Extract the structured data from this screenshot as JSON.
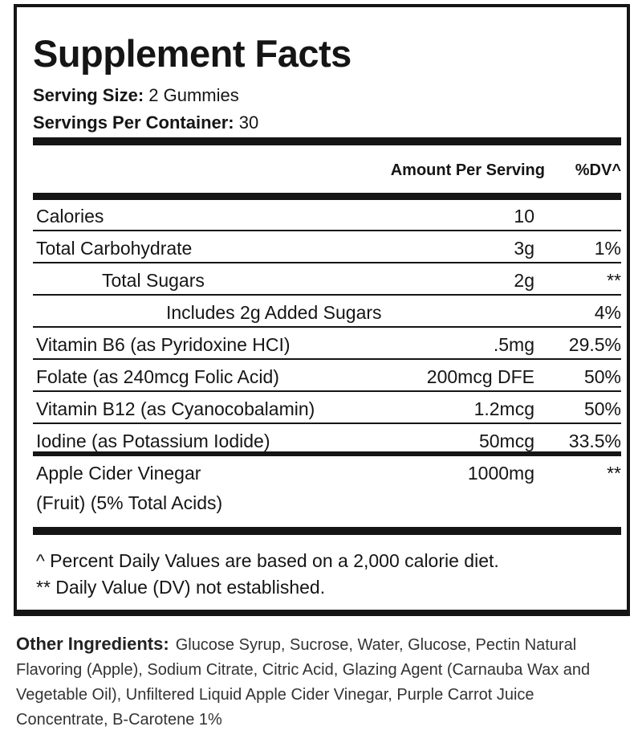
{
  "title": "Supplement Facts",
  "serving_size": {
    "label": "Serving Size:",
    "value": "2 Gummies"
  },
  "servings_per_container": {
    "label": "Servings Per Container:",
    "value": "30"
  },
  "header": {
    "amount": "Amount Per Serving",
    "dv": "%DV^"
  },
  "rows": [
    {
      "name": "Calories",
      "amount": "10",
      "dv": ""
    },
    {
      "name": "Total Carbohydrate",
      "amount": "3g",
      "dv": "1%"
    },
    {
      "name": "Total Sugars",
      "amount": "2g",
      "dv": "**"
    },
    {
      "name": "Includes 2g Added Sugars",
      "amount": "",
      "dv": "4%"
    },
    {
      "name": "Vitamin B6 (as Pyridoxine HCI)",
      "amount": ".5mg",
      "dv": "29.5%"
    },
    {
      "name": "Folate (as 240mcg Folic Acid)",
      "amount": "200mcg DFE",
      "dv": "50%"
    },
    {
      "name": "Vitamin B12 (as Cyanocobalamin)",
      "amount": "1.2mcg",
      "dv": "50%"
    },
    {
      "name": "Iodine (as Potassium Iodide)",
      "amount": "50mcg",
      "dv": "33.5%"
    },
    {
      "name": "Apple Cider Vinegar",
      "name_line2": "(Fruit) (5% Total Acids)",
      "amount": "1000mg",
      "dv": "**"
    }
  ],
  "footnotes": [
    "^ Percent Daily Values are based on a 2,000 calorie diet.",
    "** Daily Value (DV) not established."
  ],
  "other_ingredients": {
    "label": "Other Ingredients:",
    "text": "Glucose Syrup, Sucrose, Water, Glucose, Pectin Natural Flavoring (Apple), Sodium Citrate, Citric Acid, Glazing Agent (Carnauba Wax and Vegetable Oil), Unfiltered Liquid Apple Cider Vinegar, Purple Carrot Juice Concentrate, B-Carotene 1%"
  }
}
